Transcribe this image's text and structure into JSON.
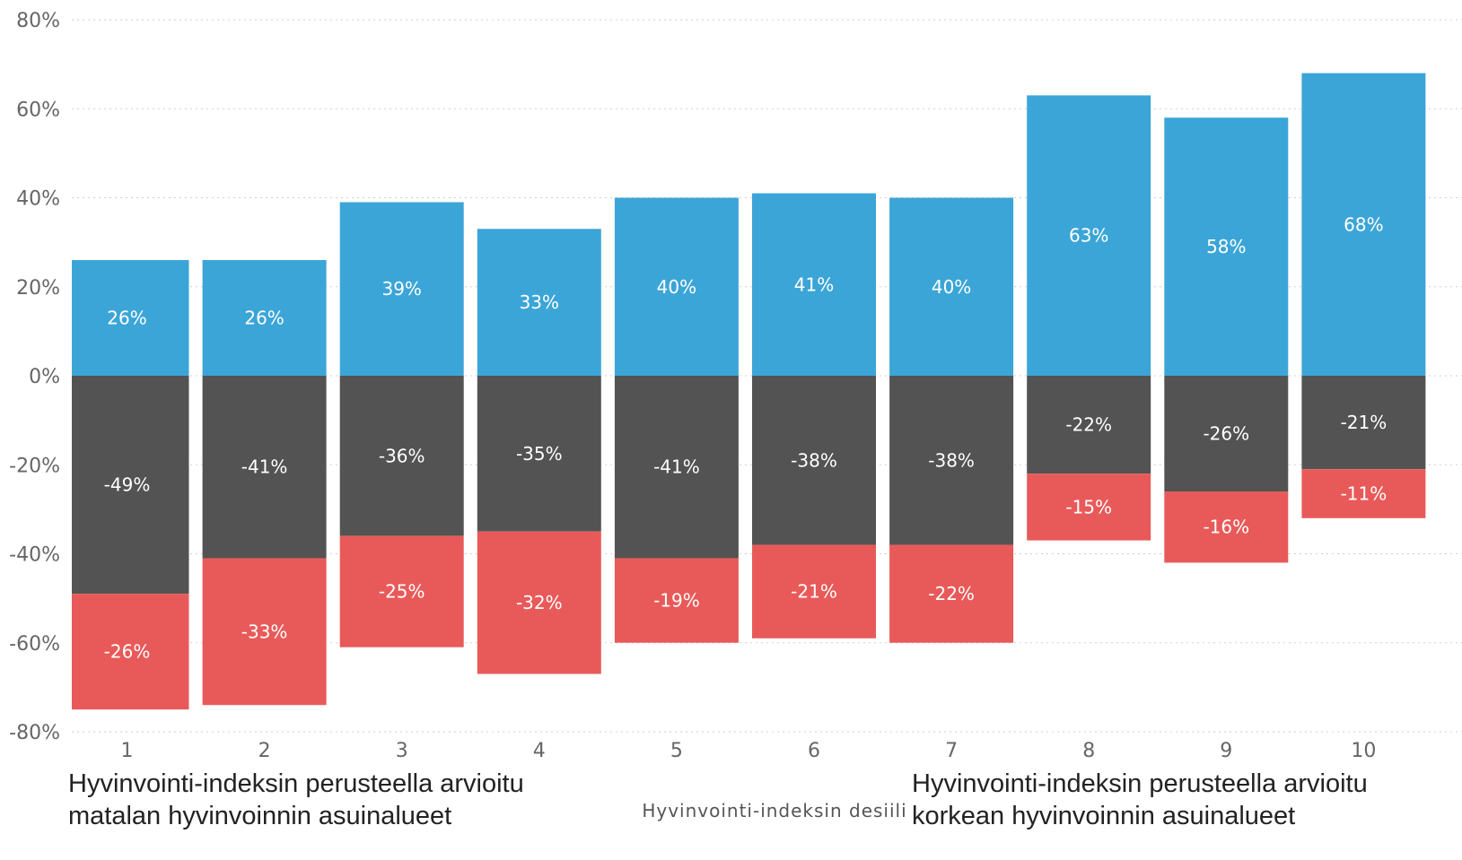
{
  "chart_data": {
    "type": "bar",
    "stacked": true,
    "categories": [
      "1",
      "2",
      "3",
      "4",
      "5",
      "6",
      "7",
      "8",
      "9",
      "10"
    ],
    "series": [
      {
        "color": "#3CA5D7",
        "values": [
          26,
          26,
          39,
          33,
          40,
          41,
          40,
          63,
          58,
          68
        ]
      },
      {
        "color": "#535353",
        "values": [
          -49,
          -41,
          -36,
          -35,
          -41,
          -38,
          -38,
          -22,
          -26,
          -21
        ]
      },
      {
        "color": "#E85A59",
        "values": [
          -26,
          -33,
          -25,
          -32,
          -19,
          -21,
          -22,
          -15,
          -16,
          -11
        ]
      }
    ],
    "ylim": [
      -80,
      80
    ],
    "yticks": [
      80,
      60,
      40,
      20,
      0,
      -20,
      -40,
      -60,
      -80
    ],
    "ytick_labels": [
      "80%",
      "60%",
      "40%",
      "20%",
      "0%",
      "-20%",
      "-40%",
      "-60%",
      "-80%"
    ],
    "value_suffix": "%",
    "xlabel": "Hyvinvointi-indeksin desiili",
    "ylabel": "",
    "grid": true,
    "grid_style": "dotted",
    "annotations": [
      {
        "lines": [
          "Hyvinvointi-indeksin perusteella arvioitu",
          "matalan hyvinvoinnin asuinalueet"
        ]
      },
      {
        "lines": [
          "Hyvinvointi-indeksin perusteella arvioitu",
          "korkean hyvinvoinnin asuinalueet"
        ]
      }
    ]
  }
}
